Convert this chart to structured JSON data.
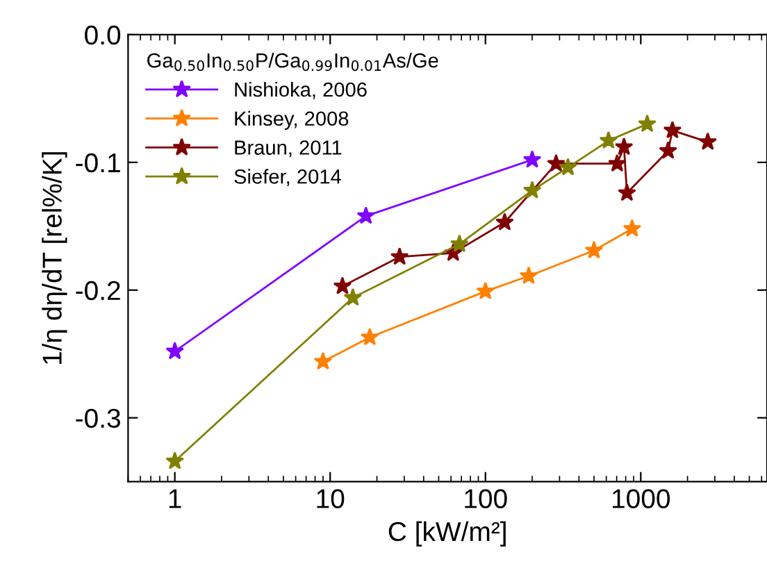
{
  "chart_data": {
    "type": "line",
    "xlabel": "C [kW/m²]",
    "ylabel": "1/η dη/dT [rel%/K]",
    "legend_title": "Ga$_{0.50}$In$_{0.50}$P/Ga$_{0.99}$In$_{0.01}$As/Ge",
    "log": "x",
    "xlim": [
      0.5,
      6500
    ],
    "xticks": [
      1,
      10,
      100,
      1000
    ],
    "ylim": [
      -0.35,
      0
    ],
    "yticks": [
      {
        "value": 0,
        "label": "0.0"
      },
      -0.1,
      -0.2,
      -0.3
    ],
    "grid": false,
    "legend": "top left",
    "marker": "star",
    "line_style": "solid",
    "series": [
      {
        "name": "Nishioka, 2006",
        "color": "#8000ff",
        "x": [
          1,
          17,
          200
        ],
        "values": [
          -0.248,
          -0.142,
          -0.098
        ]
      },
      {
        "name": "Kinsey, 2008",
        "color": "#ff8000",
        "x": [
          9,
          18,
          100,
          190,
          500,
          880
        ],
        "values": [
          -0.256,
          -0.237,
          -0.201,
          -0.189,
          -0.169,
          -0.152
        ]
      },
      {
        "name": "Braun, 2011",
        "color": "#800000",
        "x": [
          12,
          28,
          62,
          133,
          285,
          705,
          780,
          815,
          1500,
          1600,
          2700
        ],
        "values": [
          -0.197,
          -0.174,
          -0.171,
          -0.147,
          -0.101,
          -0.101,
          -0.088,
          -0.124,
          -0.091,
          -0.075,
          -0.084
        ]
      },
      {
        "name": "Siefer, 2014",
        "color": "#808000",
        "x": [
          1,
          14,
          68,
          200,
          340,
          620,
          1100
        ],
        "values": [
          -0.334,
          -0.206,
          -0.164,
          -0.122,
          -0.104,
          -0.083,
          -0.07
        ]
      }
    ]
  }
}
